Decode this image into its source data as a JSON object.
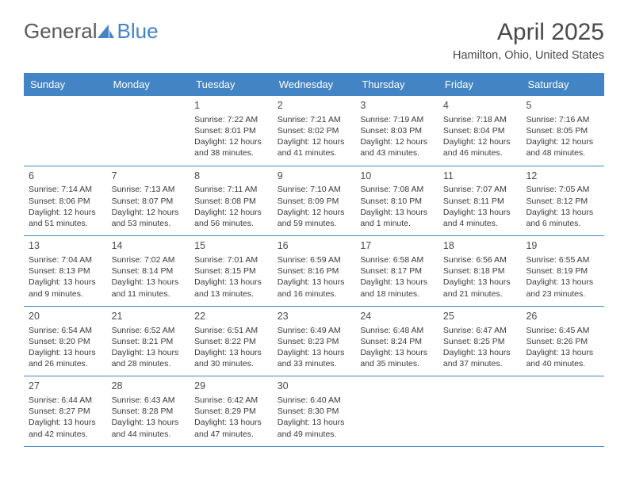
{
  "brand": {
    "text_general": "General",
    "text_blue": "Blue",
    "icon_color": "#4384c5"
  },
  "title": "April 2025",
  "location": "Hamilton, Ohio, United States",
  "colors": {
    "header_bg": "#4384c5",
    "header_text": "#ffffff",
    "border": "#4384c5",
    "text": "#3a3a3a",
    "title_text": "#4a4a4a"
  },
  "weekdays": [
    "Sunday",
    "Monday",
    "Tuesday",
    "Wednesday",
    "Thursday",
    "Friday",
    "Saturday"
  ],
  "weeks": [
    [
      {
        "day": "",
        "sunrise": "",
        "sunset": "",
        "daylight": ""
      },
      {
        "day": "",
        "sunrise": "",
        "sunset": "",
        "daylight": ""
      },
      {
        "day": "1",
        "sunrise": "Sunrise: 7:22 AM",
        "sunset": "Sunset: 8:01 PM",
        "daylight": "Daylight: 12 hours and 38 minutes."
      },
      {
        "day": "2",
        "sunrise": "Sunrise: 7:21 AM",
        "sunset": "Sunset: 8:02 PM",
        "daylight": "Daylight: 12 hours and 41 minutes."
      },
      {
        "day": "3",
        "sunrise": "Sunrise: 7:19 AM",
        "sunset": "Sunset: 8:03 PM",
        "daylight": "Daylight: 12 hours and 43 minutes."
      },
      {
        "day": "4",
        "sunrise": "Sunrise: 7:18 AM",
        "sunset": "Sunset: 8:04 PM",
        "daylight": "Daylight: 12 hours and 46 minutes."
      },
      {
        "day": "5",
        "sunrise": "Sunrise: 7:16 AM",
        "sunset": "Sunset: 8:05 PM",
        "daylight": "Daylight: 12 hours and 48 minutes."
      }
    ],
    [
      {
        "day": "6",
        "sunrise": "Sunrise: 7:14 AM",
        "sunset": "Sunset: 8:06 PM",
        "daylight": "Daylight: 12 hours and 51 minutes."
      },
      {
        "day": "7",
        "sunrise": "Sunrise: 7:13 AM",
        "sunset": "Sunset: 8:07 PM",
        "daylight": "Daylight: 12 hours and 53 minutes."
      },
      {
        "day": "8",
        "sunrise": "Sunrise: 7:11 AM",
        "sunset": "Sunset: 8:08 PM",
        "daylight": "Daylight: 12 hours and 56 minutes."
      },
      {
        "day": "9",
        "sunrise": "Sunrise: 7:10 AM",
        "sunset": "Sunset: 8:09 PM",
        "daylight": "Daylight: 12 hours and 59 minutes."
      },
      {
        "day": "10",
        "sunrise": "Sunrise: 7:08 AM",
        "sunset": "Sunset: 8:10 PM",
        "daylight": "Daylight: 13 hours and 1 minute."
      },
      {
        "day": "11",
        "sunrise": "Sunrise: 7:07 AM",
        "sunset": "Sunset: 8:11 PM",
        "daylight": "Daylight: 13 hours and 4 minutes."
      },
      {
        "day": "12",
        "sunrise": "Sunrise: 7:05 AM",
        "sunset": "Sunset: 8:12 PM",
        "daylight": "Daylight: 13 hours and 6 minutes."
      }
    ],
    [
      {
        "day": "13",
        "sunrise": "Sunrise: 7:04 AM",
        "sunset": "Sunset: 8:13 PM",
        "daylight": "Daylight: 13 hours and 9 minutes."
      },
      {
        "day": "14",
        "sunrise": "Sunrise: 7:02 AM",
        "sunset": "Sunset: 8:14 PM",
        "daylight": "Daylight: 13 hours and 11 minutes."
      },
      {
        "day": "15",
        "sunrise": "Sunrise: 7:01 AM",
        "sunset": "Sunset: 8:15 PM",
        "daylight": "Daylight: 13 hours and 13 minutes."
      },
      {
        "day": "16",
        "sunrise": "Sunrise: 6:59 AM",
        "sunset": "Sunset: 8:16 PM",
        "daylight": "Daylight: 13 hours and 16 minutes."
      },
      {
        "day": "17",
        "sunrise": "Sunrise: 6:58 AM",
        "sunset": "Sunset: 8:17 PM",
        "daylight": "Daylight: 13 hours and 18 minutes."
      },
      {
        "day": "18",
        "sunrise": "Sunrise: 6:56 AM",
        "sunset": "Sunset: 8:18 PM",
        "daylight": "Daylight: 13 hours and 21 minutes."
      },
      {
        "day": "19",
        "sunrise": "Sunrise: 6:55 AM",
        "sunset": "Sunset: 8:19 PM",
        "daylight": "Daylight: 13 hours and 23 minutes."
      }
    ],
    [
      {
        "day": "20",
        "sunrise": "Sunrise: 6:54 AM",
        "sunset": "Sunset: 8:20 PM",
        "daylight": "Daylight: 13 hours and 26 minutes."
      },
      {
        "day": "21",
        "sunrise": "Sunrise: 6:52 AM",
        "sunset": "Sunset: 8:21 PM",
        "daylight": "Daylight: 13 hours and 28 minutes."
      },
      {
        "day": "22",
        "sunrise": "Sunrise: 6:51 AM",
        "sunset": "Sunset: 8:22 PM",
        "daylight": "Daylight: 13 hours and 30 minutes."
      },
      {
        "day": "23",
        "sunrise": "Sunrise: 6:49 AM",
        "sunset": "Sunset: 8:23 PM",
        "daylight": "Daylight: 13 hours and 33 minutes."
      },
      {
        "day": "24",
        "sunrise": "Sunrise: 6:48 AM",
        "sunset": "Sunset: 8:24 PM",
        "daylight": "Daylight: 13 hours and 35 minutes."
      },
      {
        "day": "25",
        "sunrise": "Sunrise: 6:47 AM",
        "sunset": "Sunset: 8:25 PM",
        "daylight": "Daylight: 13 hours and 37 minutes."
      },
      {
        "day": "26",
        "sunrise": "Sunrise: 6:45 AM",
        "sunset": "Sunset: 8:26 PM",
        "daylight": "Daylight: 13 hours and 40 minutes."
      }
    ],
    [
      {
        "day": "27",
        "sunrise": "Sunrise: 6:44 AM",
        "sunset": "Sunset: 8:27 PM",
        "daylight": "Daylight: 13 hours and 42 minutes."
      },
      {
        "day": "28",
        "sunrise": "Sunrise: 6:43 AM",
        "sunset": "Sunset: 8:28 PM",
        "daylight": "Daylight: 13 hours and 44 minutes."
      },
      {
        "day": "29",
        "sunrise": "Sunrise: 6:42 AM",
        "sunset": "Sunset: 8:29 PM",
        "daylight": "Daylight: 13 hours and 47 minutes."
      },
      {
        "day": "30",
        "sunrise": "Sunrise: 6:40 AM",
        "sunset": "Sunset: 8:30 PM",
        "daylight": "Daylight: 13 hours and 49 minutes."
      },
      {
        "day": "",
        "sunrise": "",
        "sunset": "",
        "daylight": ""
      },
      {
        "day": "",
        "sunrise": "",
        "sunset": "",
        "daylight": ""
      },
      {
        "day": "",
        "sunrise": "",
        "sunset": "",
        "daylight": ""
      }
    ]
  ]
}
